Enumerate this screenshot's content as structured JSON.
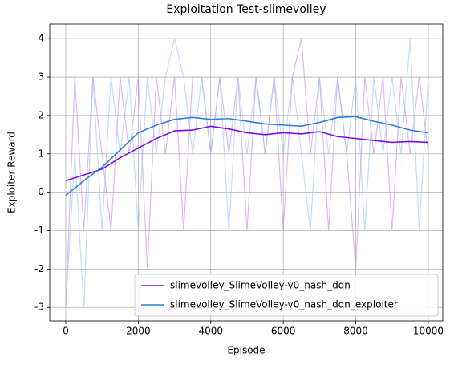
{
  "chart_data": {
    "type": "line",
    "title": "Exploitation Test-slimevolley",
    "x_label": "Episode",
    "y_label": "Exploiter Reward",
    "x": [
      0,
      500,
      1000,
      1500,
      2000,
      2500,
      3000,
      3500,
      4000,
      4500,
      5000,
      5500,
      6000,
      6500,
      7000,
      7500,
      8000,
      8500,
      9000,
      9500,
      10000
    ],
    "series": [
      {
        "name": "slimevolley_SlimeVolley-v0_nash_dqn",
        "color": "#7f0ee6",
        "values": [
          0.3,
          0.45,
          0.6,
          0.9,
          1.15,
          1.4,
          1.6,
          1.62,
          1.72,
          1.65,
          1.55,
          1.5,
          1.55,
          1.52,
          1.58,
          1.45,
          1.4,
          1.35,
          1.3,
          1.32,
          1.3
        ]
      },
      {
        "name": "slimevolley_SlimeVolley-v0_nash_dqn_exploiter",
        "color": "#2f7de1",
        "values": [
          -0.08,
          0.3,
          0.65,
          1.1,
          1.55,
          1.75,
          1.9,
          1.95,
          1.9,
          1.92,
          1.85,
          1.78,
          1.75,
          1.72,
          1.82,
          1.95,
          1.97,
          1.85,
          1.75,
          1.62,
          1.55
        ]
      }
    ],
    "raw_x": [
      0,
      250,
      500,
      750,
      1000,
      1250,
      1500,
      1750,
      2000,
      2250,
      2500,
      2750,
      3000,
      3250,
      3500,
      3750,
      4000,
      4250,
      4500,
      4750,
      5000,
      5250,
      5500,
      5750,
      6000,
      6250,
      6500,
      6750,
      7000,
      7250,
      7500,
      7750,
      8000,
      8250,
      8500,
      8750,
      9000,
      9250,
      9500,
      9750,
      10000
    ],
    "raw_series": [
      {
        "color": "#c58af5",
        "values": [
          -3,
          3,
          -1,
          3,
          1,
          -1,
          3,
          1,
          3,
          -2,
          3,
          1,
          3,
          -1,
          3,
          3,
          1,
          3,
          1,
          3,
          -1,
          3,
          1,
          3,
          -1,
          3,
          4,
          1,
          3,
          -1,
          3,
          1,
          -2,
          3,
          1,
          3,
          -1,
          3,
          1,
          3,
          1
        ]
      },
      {
        "color": "#9cc4f2",
        "values": [
          -3,
          1,
          -3,
          3,
          -1,
          3,
          1,
          3,
          -1,
          3,
          1,
          3,
          4,
          3,
          1,
          3,
          1,
          3,
          -1,
          3,
          1,
          3,
          1,
          3,
          1,
          3,
          1,
          -1,
          3,
          1,
          3,
          1,
          3,
          -1,
          3,
          1,
          3,
          1,
          4,
          -1,
          3
        ]
      }
    ],
    "xlim": [
      -442,
      10400
    ],
    "ylim": [
      -3.35,
      4.38
    ],
    "xticks": [
      0,
      2000,
      4000,
      6000,
      8000,
      10000
    ],
    "yticks": [
      -3,
      -2,
      -1,
      0,
      1,
      2,
      3,
      4
    ],
    "grid": true,
    "legend": "lower right"
  }
}
